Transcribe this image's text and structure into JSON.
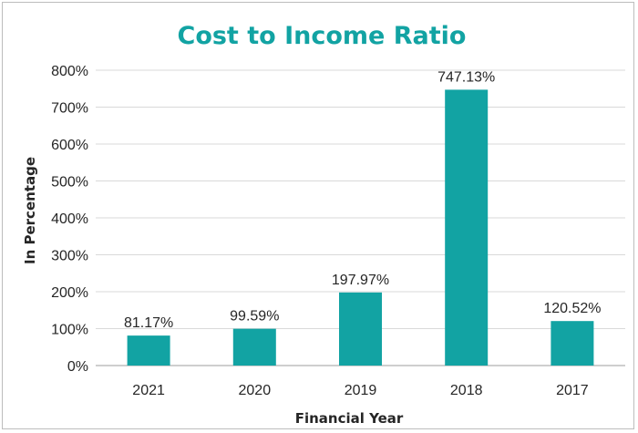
{
  "chart_data": {
    "type": "bar",
    "title": "Cost to Income Ratio",
    "xlabel": "Financial Year",
    "ylabel": "In Percentage",
    "categories": [
      "2021",
      "2020",
      "2019",
      "2018",
      "2017"
    ],
    "values": [
      81.17,
      99.59,
      197.97,
      747.13,
      120.52
    ],
    "data_labels": [
      "81.17%",
      "99.59%",
      "197.97%",
      "747.13%",
      "120.52%"
    ],
    "yticks": [
      "0%",
      "100%",
      "200%",
      "300%",
      "400%",
      "500%",
      "600%",
      "700%",
      "800%"
    ],
    "ylim": [
      0,
      800
    ],
    "grid": true,
    "legend": "none",
    "bar_color": "#12a3a3",
    "title_color": "#12a3a3"
  }
}
